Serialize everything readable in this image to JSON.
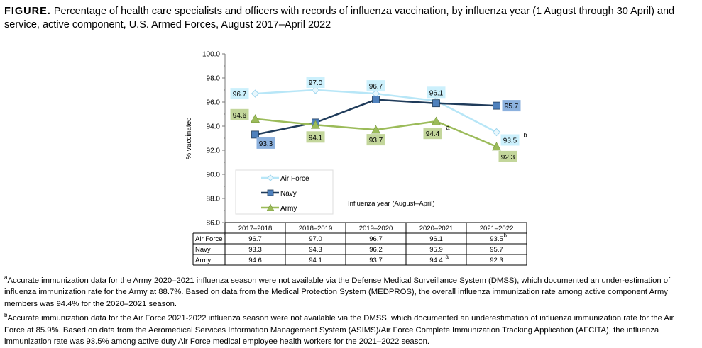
{
  "figure": {
    "label": "FIGURE.",
    "title": "Percentage of health care specialists and officers with records of influenza vaccination, by influenza year (1 August through 30 April) and service, active component, U.S. Armed Forces, August 2017–April 2022"
  },
  "chart_data": {
    "type": "line",
    "ylabel": "% vaccinated",
    "xlabel": "Influenza year (August–April)",
    "ylim": [
      86.0,
      100.0
    ],
    "yticks": [
      "86.0",
      "88.0",
      "90.0",
      "92.0",
      "94.0",
      "96.0",
      "98.0",
      "100.0"
    ],
    "categories": [
      "2017–2018",
      "2018–2019",
      "2019–2020",
      "2020–2021",
      "2021–2022"
    ],
    "legend_placement": "lower-left",
    "grid": false,
    "series": [
      {
        "name": "Air Force",
        "values": [
          96.7,
          97.0,
          96.7,
          96.1,
          93.5
        ],
        "labels": [
          "96.7",
          "97.0",
          "96.7",
          "96.1",
          "93.5"
        ],
        "color": "#b7e6f7",
        "label_bg": "#ccf0fc",
        "marker": "diamond"
      },
      {
        "name": "Navy",
        "values": [
          93.3,
          94.3,
          96.2,
          95.9,
          95.7
        ],
        "labels": [
          "93.3",
          "",
          "",
          "",
          "95.7"
        ],
        "color": "#1f3b5a",
        "label_bg": "#8cb1de",
        "marker": "square",
        "marker_color": "#4f81bd"
      },
      {
        "name": "Army",
        "values": [
          94.6,
          94.1,
          93.7,
          94.4,
          92.3
        ],
        "labels": [
          "94.6",
          "94.1",
          "93.7",
          "94.4",
          "92.3"
        ],
        "color": "#9bbb59",
        "label_bg": "#c3d69b",
        "marker": "triangle"
      }
    ],
    "annotations": [
      {
        "series": "Army",
        "category": "2020–2021",
        "text": "a"
      },
      {
        "series": "Air Force",
        "category": "2021–2022",
        "text": "b"
      }
    ],
    "table": {
      "rows": [
        {
          "name": "Air Force",
          "cells": [
            "96.7",
            "97.0",
            "96.7",
            "96.1",
            "93.5"
          ],
          "sup": [
            "",
            "",
            "",
            "",
            "b"
          ]
        },
        {
          "name": "Navy",
          "cells": [
            "93.3",
            "94.3",
            "96.2",
            "95.9",
            "95.7"
          ],
          "sup": [
            "",
            "",
            "",
            "",
            ""
          ]
        },
        {
          "name": "Army",
          "cells": [
            "94.6",
            "94.1",
            "93.7",
            "94.4",
            "92.3"
          ],
          "sup": [
            "",
            "",
            "",
            "a",
            ""
          ]
        }
      ]
    }
  },
  "footnotes": [
    {
      "mark": "a",
      "text": "Accurate immunization data for the Army 2020–2021 influenza season were not available via the Defense Medical Surveillance System (DMSS), which documented an under-estimation of influenza immunization rate for the Army at 88.7%. Based on data from the Medical Protection System (MEDPROS), the overall influenza immunization rate among active component Army members was 94.4% for the 2020–2021 season."
    },
    {
      "mark": "b",
      "text": "Accurate immunization data for the Air Force 2021-2022 influenza season were not available via the DMSS, which documented an underestimation of influenza immunization rate for the Air Force at 85.9%. Based on data from the Aeromedical Services Information Management System (ASIMS)/Air Force Complete Immunization Tracking Application (AFCITA), the influenza immunization rate was 93.5% among active duty Air Force medical employee health workers for the 2021–2022 season."
    }
  ]
}
